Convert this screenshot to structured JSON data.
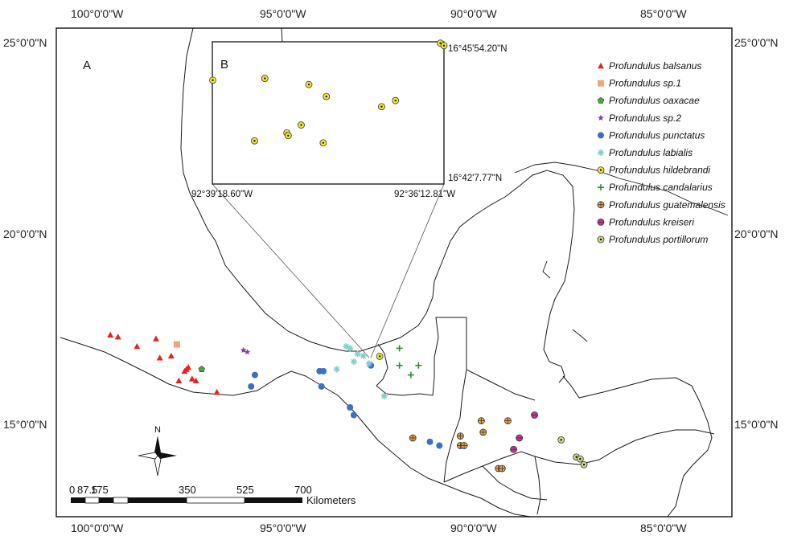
{
  "panels": {
    "main": "A",
    "inset": "B"
  },
  "lon_ticks": [
    "100°0'0\"W",
    "95°0'0\"W",
    "90°0'0\"W",
    "85°0'0\"W"
  ],
  "lat_ticks": [
    "25°0'0\"N",
    "20°0'0\"N",
    "15°0'0\"N"
  ],
  "inset_ticks": {
    "lat_top": "16°45'54.20\"N",
    "lat_bottom": "16°42'7.77\"N",
    "lon_left": "92°39'18.60\"W",
    "lon_right": "92°36'12.81\"W"
  },
  "scale_bar": {
    "labels": [
      "0",
      "87.5",
      "175",
      "350",
      "525",
      "700"
    ],
    "unit": "Kilometers"
  },
  "north_label": "N",
  "legend": [
    {
      "name": "Profundulus balsanus",
      "color": "#e8231f",
      "shape": "triangle"
    },
    {
      "name": "Profundulus sp.1",
      "color": "#f4a37e",
      "shape": "square"
    },
    {
      "name": "Profundulus oaxacae",
      "color": "#4aa83a",
      "shape": "pentagon"
    },
    {
      "name": "Profundulus sp.2",
      "color": "#8a3fa0",
      "shape": "star"
    },
    {
      "name": "Profundulus punctatus",
      "color": "#3d6fc2",
      "shape": "circle"
    },
    {
      "name": "Profundulus labialis",
      "color": "#7fd0c6",
      "shape": "asterisk"
    },
    {
      "name": "Profundulus hildebrandi",
      "color": "#f1ea2a",
      "shape": "dotcircle"
    },
    {
      "name": "Profundulus candalarius",
      "color": "#2e8b3a",
      "shape": "plus"
    },
    {
      "name": "Profundulus guatemalensis",
      "color": "#f0a43c",
      "shape": "crosscircle"
    },
    {
      "name": "Profundulus kreiseri",
      "color": "#c8338e",
      "shape": "halfcircle"
    },
    {
      "name": "Profundulus portillorum",
      "color": "#c9d98a",
      "shape": "dotcircle"
    }
  ],
  "localities": {
    "Profundulus balsanus": [
      [
        -99.7,
        17.3
      ],
      [
        -99.5,
        17.25
      ],
      [
        -99.0,
        17.0
      ],
      [
        -98.5,
        17.2
      ],
      [
        -98.4,
        16.7
      ],
      [
        -98.1,
        16.75
      ],
      [
        -97.7,
        16.4
      ],
      [
        -97.65,
        16.45
      ],
      [
        -97.75,
        16.35
      ],
      [
        -97.9,
        16.1
      ],
      [
        -97.55,
        16.15
      ],
      [
        -97.45,
        16.1
      ],
      [
        -96.9,
        15.8
      ]
    ],
    "Profundulus sp.1": [
      [
        -97.95,
        17.05
      ]
    ],
    "Profundulus oaxacae": [
      [
        -97.3,
        16.4
      ]
    ],
    "Profundulus sp.2": [
      [
        -96.2,
        16.9
      ],
      [
        -96.1,
        16.85
      ]
    ],
    "Profundulus punctatus": [
      [
        -96.0,
        15.95
      ],
      [
        -95.9,
        16.25
      ],
      [
        -94.2,
        16.35
      ],
      [
        -94.1,
        16.35
      ],
      [
        -94.15,
        15.95
      ],
      [
        -93.4,
        15.4
      ],
      [
        -93.3,
        15.2
      ],
      [
        -92.85,
        16.5
      ],
      [
        -91.3,
        14.5
      ],
      [
        -91.05,
        14.4
      ]
    ],
    "Profundulus labialis": [
      [
        -93.75,
        16.4
      ],
      [
        -93.5,
        17.0
      ],
      [
        -93.4,
        16.95
      ],
      [
        -93.2,
        16.8
      ],
      [
        -93.3,
        16.6
      ],
      [
        -93.05,
        16.75
      ],
      [
        -92.9,
        16.55
      ],
      [
        -92.5,
        15.7
      ]
    ],
    "Profundulus hildebrandi": [
      [
        -92.62,
        16.74
      ]
    ],
    "Profundulus candalarius": [
      [
        -92.1,
        16.95
      ],
      [
        -92.1,
        16.5
      ],
      [
        -91.8,
        16.25
      ],
      [
        -91.6,
        16.5
      ]
    ],
    "Profundulus guatemalensis": [
      [
        -91.75,
        14.6
      ],
      [
        -90.5,
        14.65
      ],
      [
        -90.5,
        14.4
      ],
      [
        -90.4,
        14.4
      ],
      [
        -89.95,
        15.05
      ],
      [
        -89.9,
        14.75
      ],
      [
        -89.25,
        15.05
      ],
      [
        -89.5,
        13.8
      ],
      [
        -89.4,
        13.8
      ]
    ],
    "Profundulus kreiseri": [
      [
        -88.55,
        15.2
      ],
      [
        -88.95,
        14.6
      ],
      [
        -89.1,
        14.3
      ]
    ],
    "Profundulus portillorum": [
      [
        -87.85,
        14.55
      ],
      [
        -87.45,
        14.1
      ],
      [
        -87.35,
        14.05
      ],
      [
        -87.25,
        13.9
      ]
    ]
  },
  "inset_localities": [
    [
      -92.6551,
      16.7481
    ],
    [
      -92.6435,
      16.7489
    ],
    [
      -92.6337,
      16.7462
    ],
    [
      -92.6298,
      16.7409
    ],
    [
      -92.6144,
      16.7391
    ],
    [
      -92.6175,
      16.7364
    ],
    [
      -92.6354,
      16.7283
    ],
    [
      -92.6386,
      16.7248
    ],
    [
      -92.6383,
      16.7236
    ],
    [
      -92.6305,
      16.7204
    ],
    [
      -92.6458,
      16.7213
    ],
    [
      -92.6044,
      16.7645
    ],
    [
      -92.6036,
      16.7634
    ]
  ]
}
